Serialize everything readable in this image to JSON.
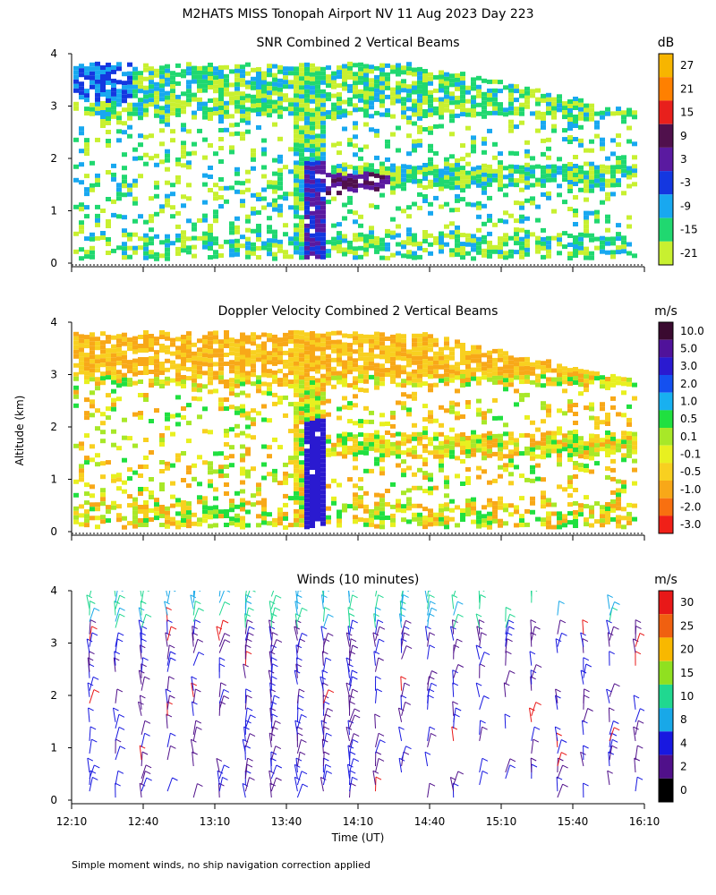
{
  "title": "M2HATS MISS Tonopah Airport NV  11 Aug 2023 Day 223",
  "ylabel_shared": "Altitude (km)",
  "footnote": "Simple moment winds, no ship navigation correction applied",
  "chart_data": [
    {
      "type": "heatmap",
      "title": "SNR Combined 2 Vertical Beams",
      "ylabel": "Altitude (km)",
      "ylim": [
        0,
        4
      ],
      "yticks": [
        "0",
        "1",
        "2",
        "3",
        "4"
      ],
      "xlim_utc": [
        "12:10",
        "16:10"
      ],
      "colorbar": {
        "unit": "dB",
        "labels": [
          "27",
          "21",
          "15",
          "9",
          "3",
          "-3",
          "-9",
          "-15",
          "-21"
        ],
        "colors": [
          "#f7b500",
          "#ff8000",
          "#e8201c",
          "#50104c",
          "#5a1aa0",
          "#1437e0",
          "#18a8f0",
          "#20d870",
          "#c8f030"
        ]
      }
    },
    {
      "type": "heatmap",
      "title": "Doppler Velocity Combined 2 Vertical Beams",
      "ylabel": "Altitude (km)",
      "ylim": [
        0,
        4
      ],
      "yticks": [
        "0",
        "1",
        "2",
        "3",
        "4"
      ],
      "xlim_utc": [
        "12:10",
        "16:10"
      ],
      "colorbar": {
        "unit": "m/s",
        "labels": [
          "10.0",
          "5.0",
          "3.0",
          "2.0",
          "1.0",
          "0.5",
          "0.1",
          "-0.1",
          "-0.5",
          "-1.0",
          "-2.0",
          "-3.0"
        ],
        "colors": [
          "#3a0a30",
          "#50129a",
          "#2a1ad0",
          "#1450f0",
          "#18b0f0",
          "#20e040",
          "#a8e828",
          "#e8f020",
          "#f8d020",
          "#f8a818",
          "#f87010",
          "#f02018"
        ]
      }
    },
    {
      "type": "wind_barbs",
      "title": "Winds (10 minutes)",
      "xlabel": "Time (UT)",
      "ylabel": "Altitude (km)",
      "ylim": [
        0,
        4
      ],
      "yticks": [
        "0",
        "1",
        "2",
        "3",
        "4"
      ],
      "xticks": [
        "12:10",
        "12:40",
        "13:10",
        "13:40",
        "14:10",
        "14:40",
        "15:10",
        "15:40",
        "16:10"
      ],
      "colorbar": {
        "unit": "m/s",
        "labels": [
          "30",
          "25",
          "20",
          "15",
          "10",
          "8",
          "4",
          "2",
          "0"
        ],
        "colors": [
          "#e81818",
          "#f06010",
          "#f8b800",
          "#90e020",
          "#20d890",
          "#18a8e8",
          "#1818e0",
          "#50108a",
          "#000000"
        ]
      }
    }
  ]
}
